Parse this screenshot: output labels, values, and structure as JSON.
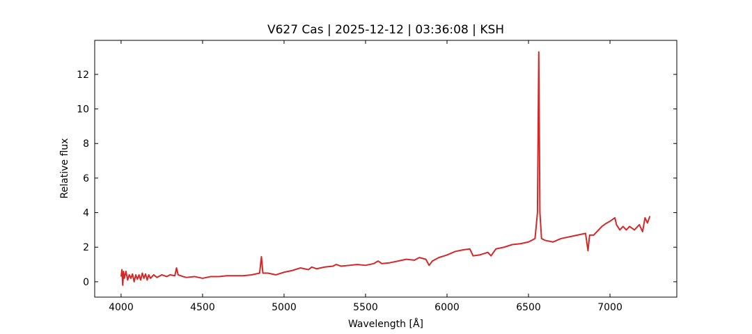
{
  "chart_data": {
    "type": "line",
    "title": "V627 Cas | 2025-12-12 | 03:36:08 | KSH",
    "xlabel": "Wavelength [Å]",
    "ylabel": "Relative flux",
    "xlim": [
      3838,
      7410
    ],
    "ylim": [
      -0.89,
      13.97
    ],
    "xticks": [
      4000,
      4500,
      5000,
      5500,
      6000,
      6500,
      7000
    ],
    "yticks": [
      0,
      2,
      4,
      6,
      8,
      10,
      12
    ],
    "series": [
      {
        "color": "#d62728",
        "x": [
          4000,
          4005,
          4010,
          4015,
          4020,
          4030,
          4040,
          4050,
          4060,
          4070,
          4080,
          4090,
          4100,
          4110,
          4120,
          4130,
          4140,
          4150,
          4160,
          4170,
          4180,
          4200,
          4220,
          4250,
          4280,
          4300,
          4330,
          4340,
          4350,
          4380,
          4400,
          4450,
          4500,
          4550,
          4600,
          4650,
          4700,
          4750,
          4800,
          4850,
          4861,
          4870,
          4900,
          4950,
          5000,
          5050,
          5100,
          5150,
          5170,
          5200,
          5250,
          5300,
          5320,
          5350,
          5400,
          5450,
          5500,
          5550,
          5577,
          5600,
          5650,
          5700,
          5750,
          5800,
          5830,
          5870,
          5890,
          5910,
          5950,
          6000,
          6050,
          6100,
          6140,
          6160,
          6200,
          6250,
          6270,
          6300,
          6350,
          6400,
          6450,
          6500,
          6540,
          6555,
          6563,
          6570,
          6580,
          6600,
          6650,
          6700,
          6750,
          6800,
          6850,
          6865,
          6875,
          6900,
          6930,
          6950,
          6980,
          7000,
          7030,
          7040,
          7060,
          7080,
          7100,
          7120,
          7150,
          7180,
          7200,
          7215,
          7230,
          7245
        ],
        "values": [
          0.3,
          0.7,
          -0.2,
          0.6,
          0.2,
          0.6,
          0.1,
          0.4,
          0.2,
          0.45,
          0.0,
          0.4,
          0.15,
          0.4,
          0.1,
          0.5,
          0.2,
          0.45,
          0.1,
          0.4,
          0.2,
          0.4,
          0.25,
          0.4,
          0.3,
          0.4,
          0.35,
          0.8,
          0.4,
          0.3,
          0.25,
          0.3,
          0.2,
          0.3,
          0.3,
          0.35,
          0.35,
          0.35,
          0.4,
          0.5,
          1.45,
          0.5,
          0.5,
          0.4,
          0.55,
          0.65,
          0.8,
          0.7,
          0.85,
          0.75,
          0.85,
          0.9,
          1.0,
          0.9,
          0.95,
          1.0,
          0.95,
          1.05,
          1.2,
          1.05,
          1.1,
          1.2,
          1.3,
          1.25,
          1.4,
          1.3,
          0.95,
          1.2,
          1.4,
          1.55,
          1.75,
          1.85,
          1.9,
          1.5,
          1.55,
          1.7,
          1.5,
          1.9,
          2.0,
          2.15,
          2.2,
          2.3,
          2.5,
          4.0,
          13.3,
          4.0,
          2.5,
          2.4,
          2.3,
          2.5,
          2.6,
          2.7,
          2.8,
          1.8,
          2.7,
          2.7,
          3.0,
          3.2,
          3.4,
          3.5,
          3.7,
          3.3,
          3.0,
          3.2,
          3.0,
          3.2,
          3.0,
          3.3,
          2.9,
          3.7,
          3.4,
          3.8
        ]
      }
    ]
  }
}
